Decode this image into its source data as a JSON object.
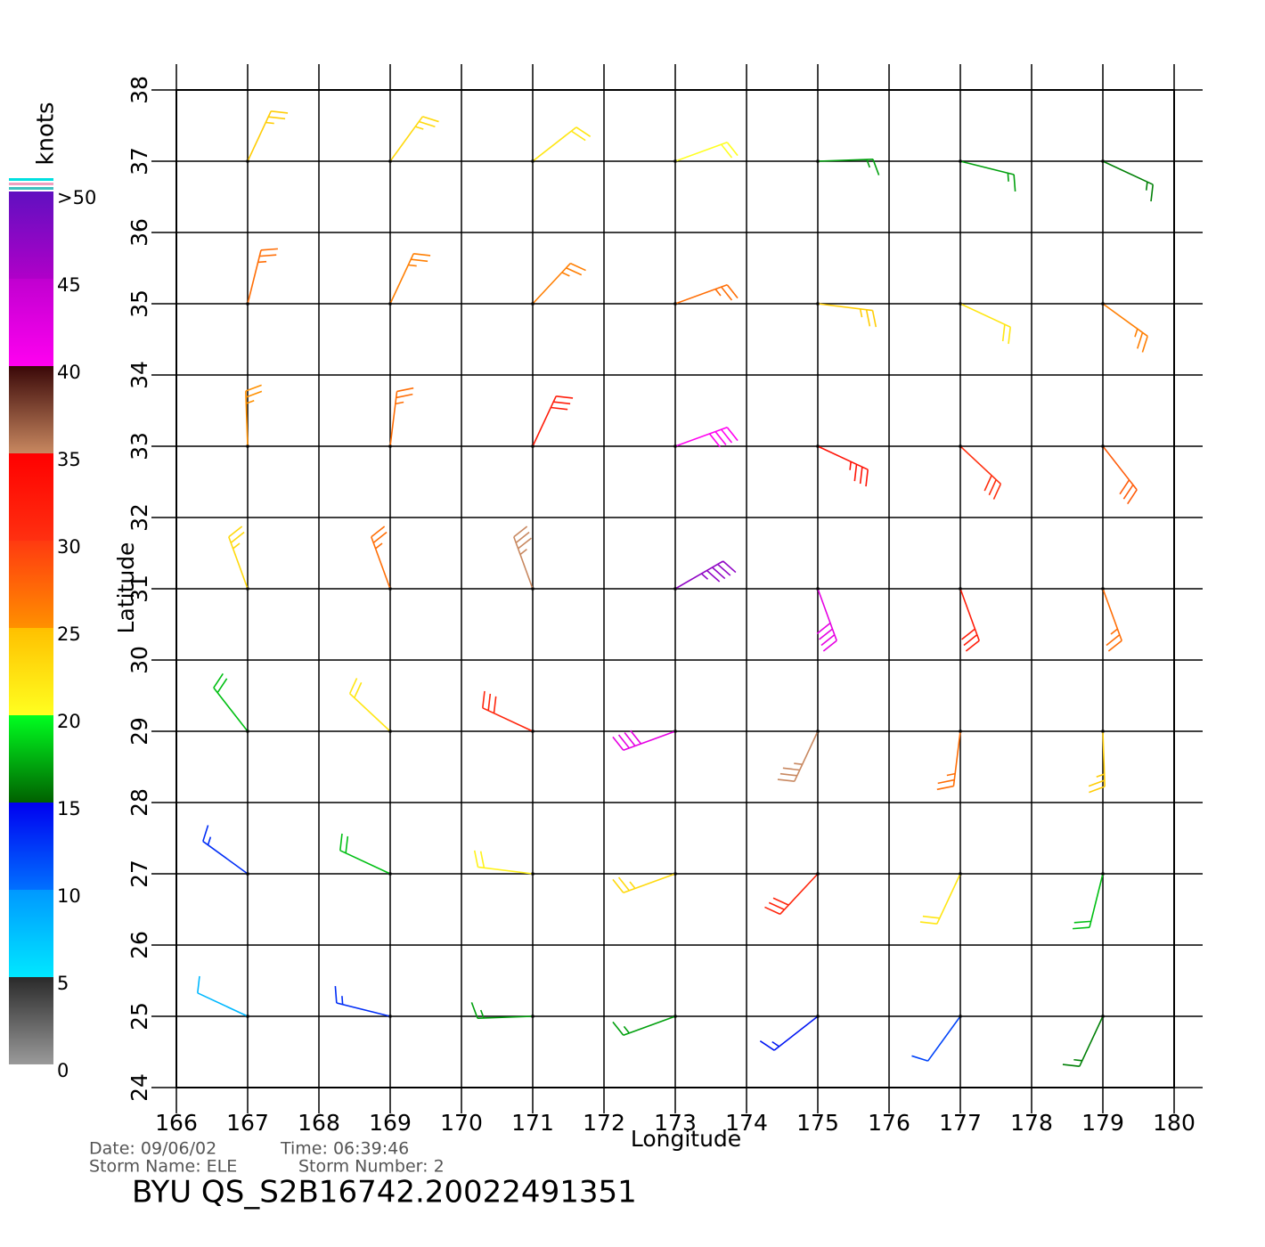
{
  "map": {
    "x_label": "Longitude",
    "y_label": "Latitude",
    "xlim": [
      166,
      180
    ],
    "ylim": [
      24,
      38
    ],
    "xticks": [
      166,
      167,
      168,
      169,
      170,
      171,
      172,
      173,
      174,
      175,
      176,
      177,
      178,
      179,
      180
    ],
    "yticks": [
      24,
      25,
      26,
      27,
      28,
      29,
      30,
      31,
      32,
      33,
      34,
      35,
      36,
      37,
      38
    ],
    "grid": true,
    "colorbar": {
      "title": "knots",
      "lim": [
        0,
        50
      ],
      "ticks": [
        0,
        5,
        10,
        15,
        20,
        25,
        30,
        35,
        40,
        45,
        {
          "value": 50,
          "label": ">50"
        }
      ],
      "colors": [
        [
          "#9a9a9a",
          "#2a2a2a"
        ],
        [
          "#00e8ff",
          "#0098ff"
        ],
        [
          "#0070ff",
          "#0000f0"
        ],
        [
          "#006000",
          "#00ff20"
        ],
        [
          "#ffff20",
          "#ffc000"
        ],
        [
          "#ff9000",
          "#ff3a10"
        ],
        [
          "#ff3010",
          "#ff0000"
        ],
        [
          "#c88860",
          "#3a0808"
        ],
        [
          "#ff00f0",
          "#c000d0"
        ],
        [
          "#b000c8",
          "#6010c0"
        ]
      ]
    },
    "lon": [
      167,
      169,
      171,
      173,
      175,
      177,
      179,
      167,
      169,
      171,
      173,
      175,
      177,
      179,
      167,
      169,
      171,
      173,
      175,
      177,
      179,
      167,
      169,
      171,
      173,
      175,
      177,
      179,
      167,
      169,
      171,
      173,
      175,
      177,
      179,
      167,
      169,
      171,
      173,
      175,
      177,
      179,
      167,
      169,
      171,
      173,
      175,
      177,
      179
    ],
    "lat": [
      37,
      37,
      37,
      37,
      37,
      37,
      37,
      35,
      35,
      35,
      35,
      35,
      35,
      35,
      33,
      33,
      33,
      33,
      33,
      33,
      33,
      31,
      31,
      31,
      31,
      31,
      31,
      31,
      29,
      29,
      29,
      29,
      29,
      29,
      29,
      27,
      27,
      27,
      27,
      27,
      27,
      27,
      25,
      25,
      25,
      25,
      25,
      25,
      25
    ],
    "speed": [
      24,
      23,
      22,
      20,
      17,
      17,
      16,
      27,
      26,
      26,
      27,
      24,
      22,
      26,
      25,
      27,
      32,
      40,
      33,
      30,
      28,
      23,
      27,
      35,
      47,
      42,
      32,
      27,
      18,
      22,
      31,
      42,
      35,
      27,
      24,
      13,
      18,
      21,
      23,
      31,
      22,
      18,
      8,
      13,
      17,
      17,
      14,
      12,
      16
    ],
    "direction": [
      25,
      36,
      52,
      70,
      88,
      104,
      115,
      14,
      25,
      43,
      70,
      97,
      115,
      126,
      358,
      7,
      25,
      70,
      115,
      133,
      142,
      340,
      340,
      340,
      60,
      160,
      160,
      160,
      322,
      313,
      295,
      250,
      205,
      187,
      178,
      306,
      295,
      277,
      250,
      223,
      205,
      194,
      295,
      284,
      268,
      250,
      232,
      216,
      205
    ],
    "date": "Date: 09/06/02",
    "time": "Time: 06:39:46",
    "storm_name": "Storm Name: ELE",
    "storm_number": "Storm Number: 2",
    "file_id": "BYU QS_S2B16742.20022491351"
  }
}
